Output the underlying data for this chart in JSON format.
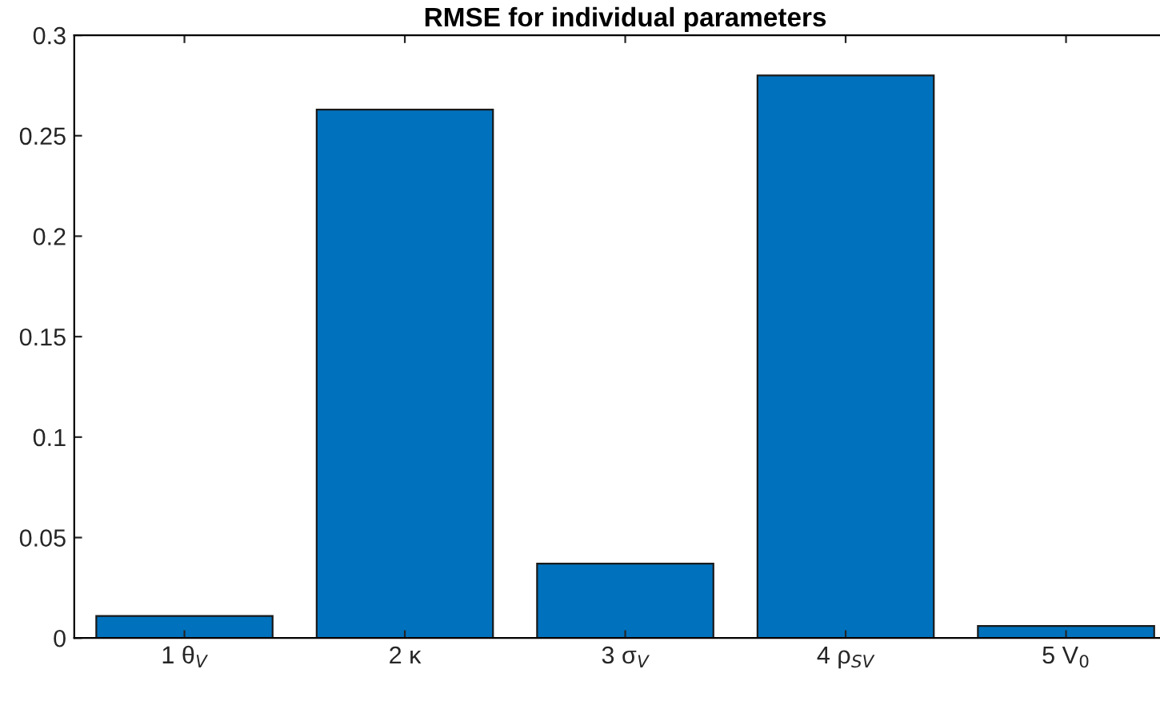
{
  "chart_data": {
    "type": "bar",
    "title": "RMSE for individual parameters",
    "categories": [
      "1 θ$_{V}$",
      "2 κ",
      "3 σ$_{V}$",
      "4 ρ$_{SV}$",
      "5 V$_{0}$"
    ],
    "values": [
      0.011,
      0.263,
      0.037,
      0.28,
      0.006
    ],
    "color": "#0072bd",
    "ylim": [
      0,
      0.3
    ],
    "yticks": [
      0,
      0.05,
      0.1,
      0.15,
      0.2,
      0.25,
      0.3
    ],
    "grid": false
  }
}
